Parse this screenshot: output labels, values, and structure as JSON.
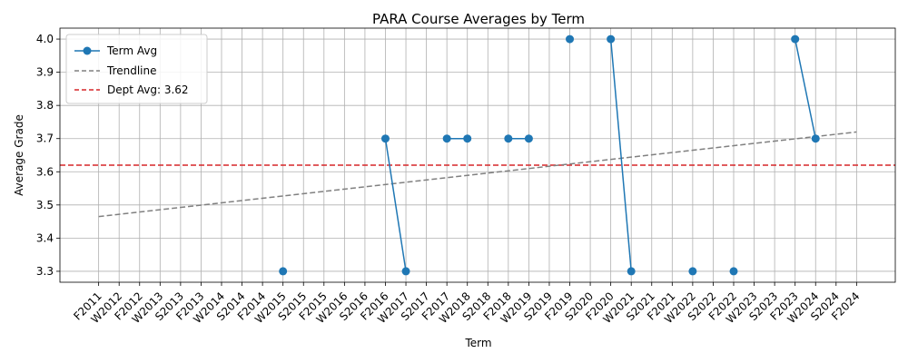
{
  "chart_data": {
    "type": "line",
    "title": "PARA Course Averages by Term",
    "xlabel": "Term",
    "ylabel": "Average Grade",
    "ylim": [
      3.267,
      4.033
    ],
    "yticks": [
      "3.3",
      "3.4",
      "3.5",
      "3.6",
      "3.7",
      "3.8",
      "3.9",
      "4.0"
    ],
    "ytick_values": [
      3.3,
      3.4,
      3.5,
      3.6,
      3.7,
      3.8,
      3.9,
      4.0
    ],
    "categories": [
      "F2011",
      "W2012",
      "F2012",
      "W2013",
      "S2013",
      "F2013",
      "W2014",
      "S2014",
      "F2014",
      "W2015",
      "S2015",
      "F2015",
      "W2016",
      "S2016",
      "F2016",
      "W2017",
      "S2017",
      "F2017",
      "W2018",
      "S2018",
      "F2018",
      "W2019",
      "S2019",
      "F2019",
      "S2020",
      "F2020",
      "W2021",
      "S2021",
      "F2021",
      "W2022",
      "S2022",
      "F2022",
      "W2023",
      "S2023",
      "F2023",
      "W2024",
      "S2024",
      "F2024"
    ],
    "grid": true,
    "legend_position": "top-left",
    "series": [
      {
        "name": "Term Avg",
        "color": "#1f77b4",
        "style": "solid-markers",
        "values": [
          null,
          null,
          null,
          null,
          null,
          null,
          null,
          null,
          null,
          3.3,
          null,
          null,
          null,
          null,
          3.7,
          3.3,
          null,
          3.7,
          3.7,
          null,
          3.7,
          3.7,
          null,
          4.0,
          null,
          4.0,
          3.3,
          null,
          null,
          3.3,
          null,
          3.3,
          null,
          null,
          4.0,
          3.7,
          null,
          null
        ]
      },
      {
        "name": "Trendline",
        "color": "#808080",
        "style": "dashed",
        "x_range": [
          0,
          37
        ],
        "y_range": [
          3.465,
          3.72
        ]
      }
    ],
    "reference_line": {
      "name": "Dept Avg: 3.62",
      "value": 3.62,
      "color": "#d62728",
      "style": "dashed"
    }
  }
}
